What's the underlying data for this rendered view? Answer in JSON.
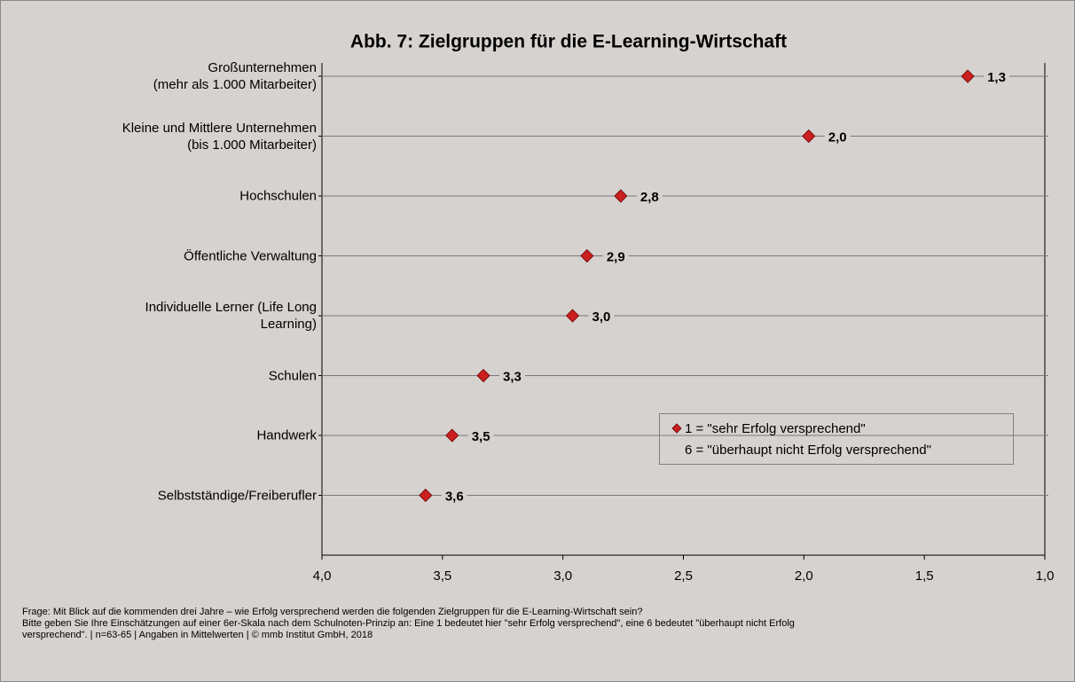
{
  "chart_data": {
    "type": "dot",
    "title": "Abb. 7: Zielgruppen für die E-Learning-Wirtschaft",
    "categories": [
      "Großunternehmen\n(mehr als 1.000 Mitarbeiter)",
      "Kleine und Mittlere Unternehmen\n(bis 1.000 Mitarbeiter)",
      "Hochschulen",
      "Öffentliche Verwaltung",
      "Individuelle  Lerner (Life Long\nLearning)",
      "Schulen",
      "Handwerk",
      "Selbstständige/Freiberufler"
    ],
    "values": [
      1.32,
      1.98,
      2.76,
      2.9,
      2.96,
      3.33,
      3.46,
      3.57
    ],
    "value_labels": [
      "1,3",
      "2,0",
      "2,8",
      "2,9",
      "3,0",
      "3,3",
      "3,5",
      "3,6"
    ],
    "color": "#cc1f1f",
    "xlim": [
      4.0,
      1.0
    ],
    "xticks": [
      {
        "value": 4.0,
        "label": "4,0"
      },
      {
        "value": 3.5,
        "label": "3,5"
      },
      {
        "value": 3.0,
        "label": "3,0"
      },
      {
        "value": 2.5,
        "label": "2,5"
      },
      {
        "value": 2.0,
        "label": "2,0"
      },
      {
        "value": 1.5,
        "label": "1,5"
      },
      {
        "value": 1.0,
        "label": "1,0"
      }
    ],
    "legend": [
      "1 = \"sehr Erfolg versprechend\"",
      "6 = \"überhaupt nicht Erfolg versprechend\""
    ],
    "footnote": [
      "Frage: Mit Blick auf die kommenden drei Jahre – wie Erfolg versprechend werden die folgenden Zielgruppen für die E-Learning-Wirtschaft sein?",
      "Bitte geben Sie Ihre Einschätzungen auf einer 6er-Skala nach dem Schulnoten-Prinzip an: Eine 1 bedeutet hier \"sehr Erfolg versprechend\", eine 6 bedeutet \"überhaupt nicht Erfolg",
      "versprechend\".  | n=63-65 | Angaben in Mittelwerten | © mmb Institut GmbH, 2018"
    ]
  }
}
